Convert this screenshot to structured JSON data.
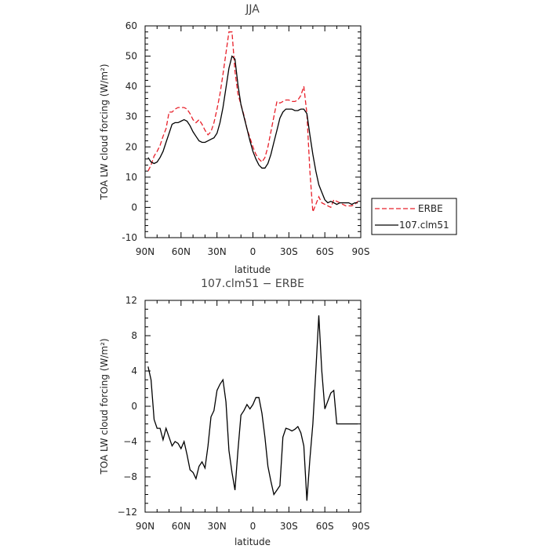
{
  "chart_data": [
    {
      "type": "line",
      "title": "JJA",
      "xlabel": "latitude",
      "ylabel": "TOA LW cloud forcing (W/m²)",
      "xlim": [
        90,
        -90
      ],
      "ylim": [
        -10,
        60
      ],
      "x_ticks": [
        90,
        60,
        30,
        0,
        -30,
        -60,
        -90
      ],
      "x_tick_labels": [
        "90N",
        "60N",
        "30N",
        "0",
        "30S",
        "60S",
        "90S"
      ],
      "y_ticks": [
        -10,
        0,
        10,
        20,
        30,
        40,
        50,
        60
      ],
      "y_tick_labels": [
        "-10",
        "0",
        "10",
        "20",
        "30",
        "40",
        "50",
        "60"
      ],
      "legend": {
        "placement": "outside-right",
        "entries": [
          "ERBE",
          "107.clm51"
        ]
      },
      "x": [
        87.5,
        85,
        82.5,
        80,
        77.5,
        75,
        72.5,
        70,
        67.5,
        65,
        62.5,
        60,
        57.5,
        55,
        52.5,
        50,
        47.5,
        45,
        42.5,
        40,
        37.5,
        35,
        32.5,
        30,
        27.5,
        25,
        22.5,
        20,
        17.5,
        15,
        12.5,
        10,
        7.5,
        5,
        2.5,
        0,
        -2.5,
        -5,
        -7.5,
        -10,
        -12.5,
        -15,
        -17.5,
        -20,
        -22.5,
        -25,
        -27.5,
        -30,
        -32.5,
        -35,
        -37.5,
        -40,
        -42.5,
        -45,
        -47.5,
        -50,
        -52.5,
        -55,
        -57.5,
        -60,
        -62.5,
        -65,
        -67.5,
        -70,
        -72.5,
        -75,
        -77.5,
        -80,
        -82.5,
        -85,
        -87.5
      ],
      "series": [
        {
          "name": "ERBE",
          "color": "#e8202a",
          "dash": "dashed",
          "values": [
            12.0,
            14.0,
            17.0,
            18.5,
            20.5,
            23.5,
            26.0,
            31.5,
            31.5,
            32.5,
            33.0,
            33.0,
            33.0,
            32.5,
            31.0,
            29.0,
            28.0,
            29.0,
            27.5,
            25.5,
            24.0,
            25.0,
            28.0,
            32.5,
            37.5,
            44.0,
            51.0,
            58.0,
            58.0,
            45.0,
            37.5,
            34.0,
            30.5,
            26.0,
            23.0,
            20.0,
            17.5,
            16.0,
            15.0,
            16.5,
            20.0,
            25.0,
            30.0,
            35.0,
            34.5,
            35.0,
            35.5,
            35.5,
            35.0,
            35.0,
            35.5,
            37.0,
            40.0,
            31.0,
            12.0,
            -1.5,
            1.0,
            3.5,
            1.5,
            1.0,
            0.5,
            0.0,
            2.5,
            2.0,
            1.5,
            1.0,
            0.5,
            0.5,
            0.5,
            1.0,
            2.0
          ]
        },
        {
          "name": "107.clm51",
          "color": "#000000",
          "dash": "solid",
          "values": [
            16.5,
            15.0,
            14.5,
            15.0,
            16.5,
            18.5,
            21.5,
            24.5,
            27.5,
            28.0,
            28.0,
            28.5,
            29.0,
            28.5,
            27.0,
            25.0,
            23.5,
            22.0,
            21.5,
            21.5,
            22.0,
            22.5,
            23.0,
            24.5,
            28.0,
            33.0,
            39.5,
            46.0,
            50.0,
            49.0,
            40.5,
            34.0,
            30.0,
            26.0,
            22.0,
            18.5,
            16.0,
            14.0,
            13.0,
            13.0,
            14.5,
            17.5,
            21.5,
            25.5,
            29.5,
            31.5,
            32.5,
            32.5,
            32.5,
            32.0,
            32.0,
            32.5,
            32.5,
            31.0,
            24.0,
            17.5,
            12.0,
            7.5,
            5.0,
            2.5,
            1.5,
            2.0,
            1.5,
            1.0,
            1.5,
            1.5,
            1.5,
            1.5,
            1.0,
            1.5,
            1.5
          ]
        }
      ]
    },
    {
      "type": "line",
      "title": "107.clm51 − ERBE",
      "xlabel": "latitude",
      "ylabel": "TOA LW cloud forcing (W/m²)",
      "xlim": [
        90,
        -90
      ],
      "ylim": [
        -12,
        12
      ],
      "x_ticks": [
        90,
        60,
        30,
        0,
        -30,
        -60,
        -90
      ],
      "x_tick_labels": [
        "90N",
        "60N",
        "30N",
        "0",
        "30S",
        "60S",
        "90S"
      ],
      "y_ticks": [
        -12,
        -8,
        -4,
        0,
        4,
        8,
        12
      ],
      "y_tick_labels": [
        "−12",
        "−8",
        "−4",
        "0",
        "4",
        "8",
        "12"
      ],
      "x": [
        87.5,
        85,
        82.5,
        80,
        77.5,
        75,
        72.5,
        70,
        67.5,
        65,
        62.5,
        60,
        57.5,
        55,
        52.5,
        50,
        47.5,
        45,
        42.5,
        40,
        37.5,
        35,
        32.5,
        30,
        27.5,
        25,
        22.5,
        20,
        17.5,
        15,
        12.5,
        10,
        7.5,
        5,
        2.5,
        0,
        -2.5,
        -5,
        -7.5,
        -10,
        -12.5,
        -15,
        -17.5,
        -20,
        -22.5,
        -25,
        -27.5,
        -30,
        -32.5,
        -35,
        -37.5,
        -40,
        -42.5,
        -45,
        -47.5,
        -50,
        -52.5,
        -55,
        -57.5,
        -60,
        -62.5,
        -65,
        -67.5,
        -70,
        -72.5,
        -75,
        -77.5,
        -80,
        -82.5,
        -85,
        -87.5
      ],
      "series": [
        {
          "color": "#000000",
          "dash": "solid",
          "values": [
            4.5,
            3.0,
            -1.5,
            -2.5,
            -2.5,
            -3.8,
            -2.5,
            -3.5,
            -4.5,
            -4.0,
            -4.2,
            -4.8,
            -4.0,
            -5.5,
            -7.2,
            -7.5,
            -8.2,
            -6.8,
            -6.3,
            -7.0,
            -4.5,
            -1.2,
            -0.5,
            1.8,
            2.5,
            3.0,
            0.5,
            -5.0,
            -7.5,
            -9.5,
            -5.0,
            -1.0,
            -0.5,
            0.2,
            -0.3,
            0.2,
            1.0,
            1.0,
            -0.8,
            -3.5,
            -6.8,
            -8.5,
            -10.0,
            -9.5,
            -9.0,
            -3.5,
            -2.5,
            -2.6,
            -2.8,
            -2.6,
            -2.3,
            -3.0,
            -4.5,
            -10.7,
            -6.0,
            -2.0,
            4.0,
            10.3,
            4.0,
            -0.3,
            0.6,
            1.5,
            1.8,
            -2.0,
            -2.0,
            -2.0,
            -2.0,
            -2.0,
            -2.0,
            -2.0,
            -2.0
          ]
        }
      ]
    }
  ]
}
